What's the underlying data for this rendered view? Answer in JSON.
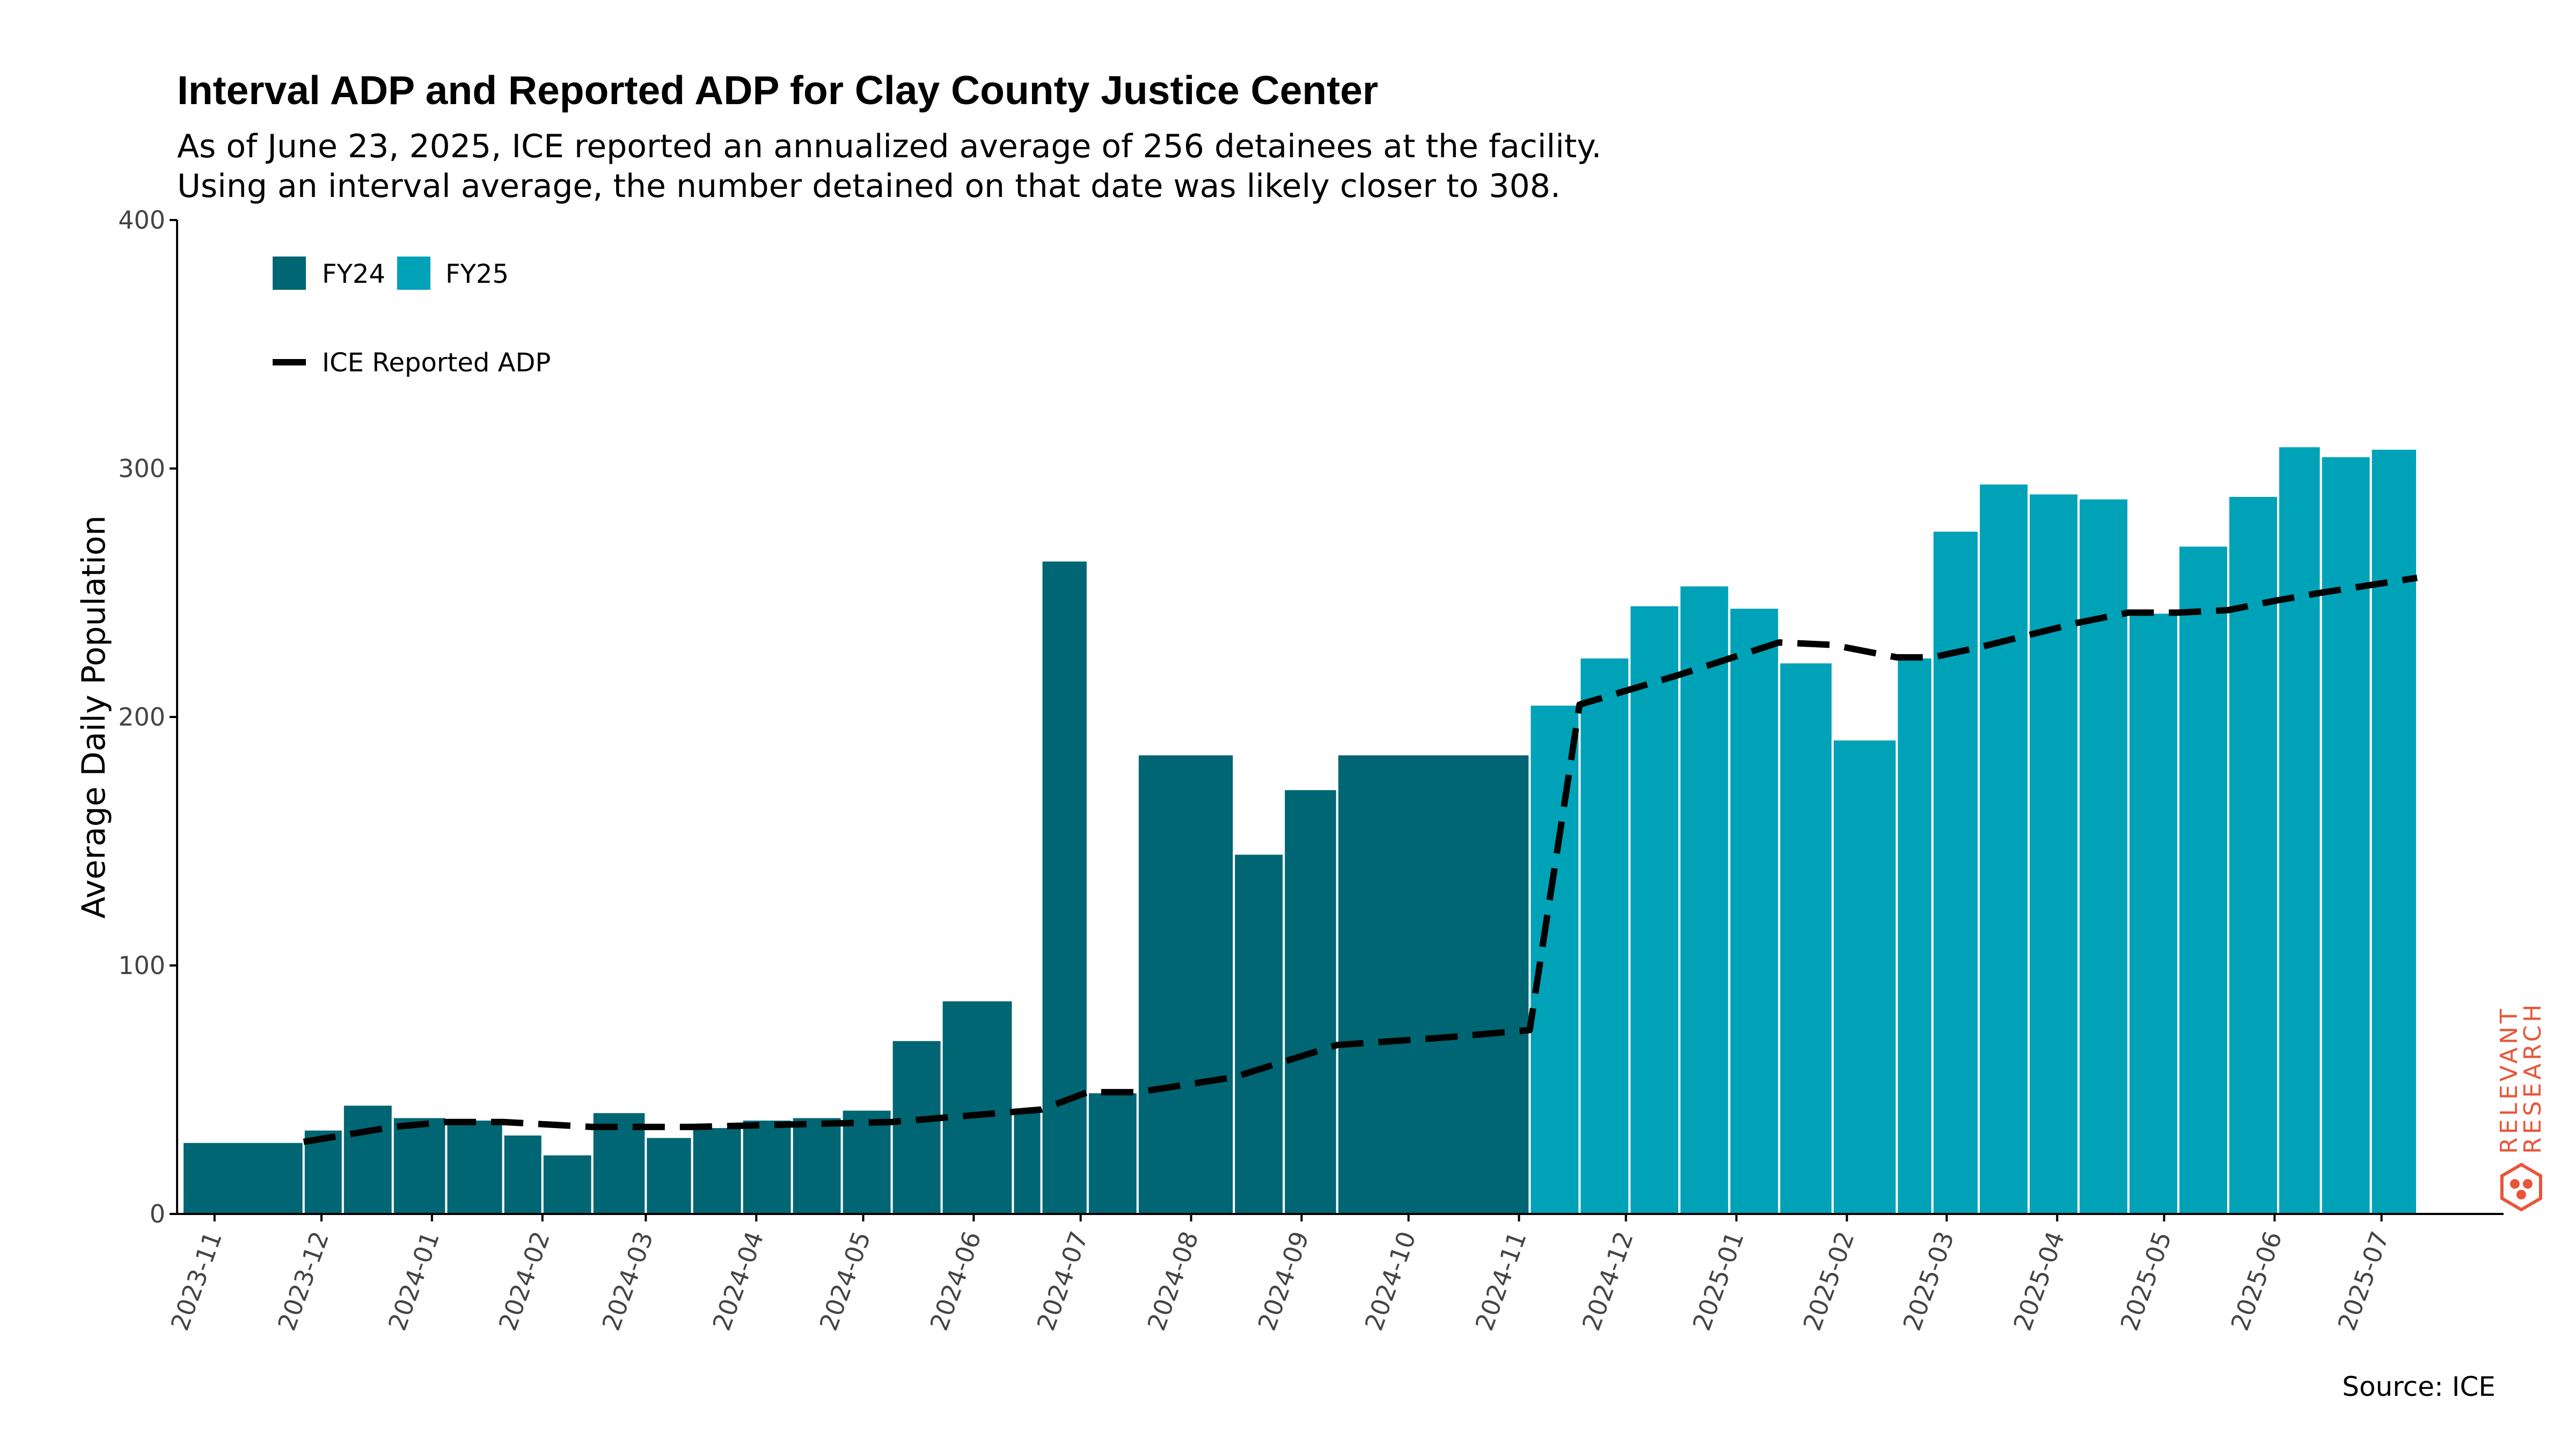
{
  "title": "Interval ADP and Reported ADP for Clay County Justice Center",
  "subtitle_line1": "As of June 23, 2025, ICE reported an annualized average of 256 detainees at the facility.",
  "subtitle_line2": "Using an interval average, the number detained on that date was likely closer to 308.",
  "source": "Source: ICE",
  "logo": {
    "line1": "RELEVANT",
    "line2": "RESEARCH",
    "color": "#e8563a"
  },
  "colors": {
    "fy24": "#006673",
    "fy25": "#00a2b8",
    "line": "#000000"
  },
  "chart_data": {
    "type": "bar",
    "ylabel": "Average Daily Population",
    "ylim": [
      0,
      400
    ],
    "yticks": [
      0,
      100,
      200,
      300,
      400
    ],
    "xticks": [
      "2023-11",
      "2023-12",
      "2024-01",
      "2024-02",
      "2024-03",
      "2024-04",
      "2024-05",
      "2024-06",
      "2024-07",
      "2024-08",
      "2024-09",
      "2024-10",
      "2024-11",
      "2024-12",
      "2025-01",
      "2025-02",
      "2025-03",
      "2025-04",
      "2025-05",
      "2025-06",
      "2025-07"
    ],
    "legend": {
      "placement": "top-left",
      "fy24": "FY24",
      "fy25": "FY25",
      "line": "ICE Reported ADP"
    },
    "bars": [
      {
        "start": "2023-10-23",
        "end": "2023-11-26",
        "value": 29,
        "fy": "FY24"
      },
      {
        "start": "2023-11-26",
        "end": "2023-12-07",
        "value": 34,
        "fy": "FY24"
      },
      {
        "start": "2023-12-07",
        "end": "2023-12-21",
        "value": 44,
        "fy": "FY24"
      },
      {
        "start": "2023-12-21",
        "end": "2024-01-05",
        "value": 39,
        "fy": "FY24"
      },
      {
        "start": "2024-01-05",
        "end": "2024-01-21",
        "value": 38,
        "fy": "FY24"
      },
      {
        "start": "2024-01-21",
        "end": "2024-02-01",
        "value": 32,
        "fy": "FY24"
      },
      {
        "start": "2024-02-01",
        "end": "2024-02-15",
        "value": 24,
        "fy": "FY24"
      },
      {
        "start": "2024-02-15",
        "end": "2024-03-01",
        "value": 41,
        "fy": "FY24"
      },
      {
        "start": "2024-03-01",
        "end": "2024-03-14",
        "value": 31,
        "fy": "FY24"
      },
      {
        "start": "2024-03-14",
        "end": "2024-03-28",
        "value": 35,
        "fy": "FY24"
      },
      {
        "start": "2024-03-28",
        "end": "2024-04-11",
        "value": 38,
        "fy": "FY24"
      },
      {
        "start": "2024-04-11",
        "end": "2024-04-25",
        "value": 39,
        "fy": "FY24"
      },
      {
        "start": "2024-04-25",
        "end": "2024-05-09",
        "value": 42,
        "fy": "FY24"
      },
      {
        "start": "2024-05-09",
        "end": "2024-05-23",
        "value": 70,
        "fy": "FY24"
      },
      {
        "start": "2024-05-23",
        "end": "2024-06-12",
        "value": 86,
        "fy": "FY24"
      },
      {
        "start": "2024-06-12",
        "end": "2024-06-20",
        "value": 42,
        "fy": "FY24"
      },
      {
        "start": "2024-06-20",
        "end": "2024-07-03",
        "value": 263,
        "fy": "FY24"
      },
      {
        "start": "2024-07-03",
        "end": "2024-07-17",
        "value": 49,
        "fy": "FY24"
      },
      {
        "start": "2024-07-17",
        "end": "2024-08-13",
        "value": 185,
        "fy": "FY24"
      },
      {
        "start": "2024-08-13",
        "end": "2024-08-27",
        "value": 145,
        "fy": "FY24"
      },
      {
        "start": "2024-08-27",
        "end": "2024-09-11",
        "value": 171,
        "fy": "FY24"
      },
      {
        "start": "2024-09-11",
        "end": "2024-11-04",
        "value": 185,
        "fy": "FY24"
      },
      {
        "start": "2024-11-04",
        "end": "2024-11-18",
        "value": 205,
        "fy": "FY25"
      },
      {
        "start": "2024-11-18",
        "end": "2024-12-02",
        "value": 224,
        "fy": "FY25"
      },
      {
        "start": "2024-12-02",
        "end": "2024-12-16",
        "value": 245,
        "fy": "FY25"
      },
      {
        "start": "2024-12-16",
        "end": "2024-12-30",
        "value": 253,
        "fy": "FY25"
      },
      {
        "start": "2024-12-30",
        "end": "2025-01-13",
        "value": 244,
        "fy": "FY25"
      },
      {
        "start": "2025-01-13",
        "end": "2025-01-28",
        "value": 222,
        "fy": "FY25"
      },
      {
        "start": "2025-01-28",
        "end": "2025-02-15",
        "value": 191,
        "fy": "FY25"
      },
      {
        "start": "2025-02-15",
        "end": "2025-02-25",
        "value": 224,
        "fy": "FY25"
      },
      {
        "start": "2025-02-25",
        "end": "2025-03-10",
        "value": 275,
        "fy": "FY25"
      },
      {
        "start": "2025-03-10",
        "end": "2025-03-24",
        "value": 294,
        "fy": "FY25"
      },
      {
        "start": "2025-03-24",
        "end": "2025-04-07",
        "value": 290,
        "fy": "FY25"
      },
      {
        "start": "2025-04-07",
        "end": "2025-04-21",
        "value": 288,
        "fy": "FY25"
      },
      {
        "start": "2025-04-21",
        "end": "2025-05-05",
        "value": 242,
        "fy": "FY25"
      },
      {
        "start": "2025-05-05",
        "end": "2025-05-19",
        "value": 269,
        "fy": "FY25"
      },
      {
        "start": "2025-05-19",
        "end": "2025-06-02",
        "value": 289,
        "fy": "FY25"
      },
      {
        "start": "2025-06-02",
        "end": "2025-06-14",
        "value": 309,
        "fy": "FY25"
      },
      {
        "start": "2025-06-14",
        "end": "2025-06-28",
        "value": 305,
        "fy": "FY25"
      },
      {
        "start": "2025-06-28",
        "end": "2025-07-11",
        "value": 308,
        "fy": "FY25"
      }
    ],
    "line": {
      "name": "ICE Reported ADP",
      "points": [
        [
          "2023-11-26",
          29
        ],
        [
          "2023-12-21",
          35
        ],
        [
          "2024-01-05",
          37
        ],
        [
          "2024-01-21",
          37
        ],
        [
          "2024-02-15",
          35
        ],
        [
          "2024-03-14",
          35
        ],
        [
          "2024-04-11",
          36
        ],
        [
          "2024-05-09",
          37
        ],
        [
          "2024-06-20",
          42
        ],
        [
          "2024-07-03",
          49
        ],
        [
          "2024-07-17",
          49
        ],
        [
          "2024-08-13",
          55
        ],
        [
          "2024-09-11",
          68
        ],
        [
          "2024-10-11",
          71
        ],
        [
          "2024-11-04",
          74
        ],
        [
          "2024-11-18",
          205
        ],
        [
          "2024-12-16",
          217
        ],
        [
          "2025-01-13",
          230
        ],
        [
          "2025-01-28",
          229
        ],
        [
          "2025-02-15",
          224
        ],
        [
          "2025-02-25",
          224
        ],
        [
          "2025-03-10",
          228
        ],
        [
          "2025-04-07",
          238
        ],
        [
          "2025-04-21",
          242
        ],
        [
          "2025-05-05",
          242
        ],
        [
          "2025-05-19",
          243
        ],
        [
          "2025-06-02",
          247
        ],
        [
          "2025-06-14",
          250
        ],
        [
          "2025-07-11",
          256
        ]
      ]
    }
  }
}
